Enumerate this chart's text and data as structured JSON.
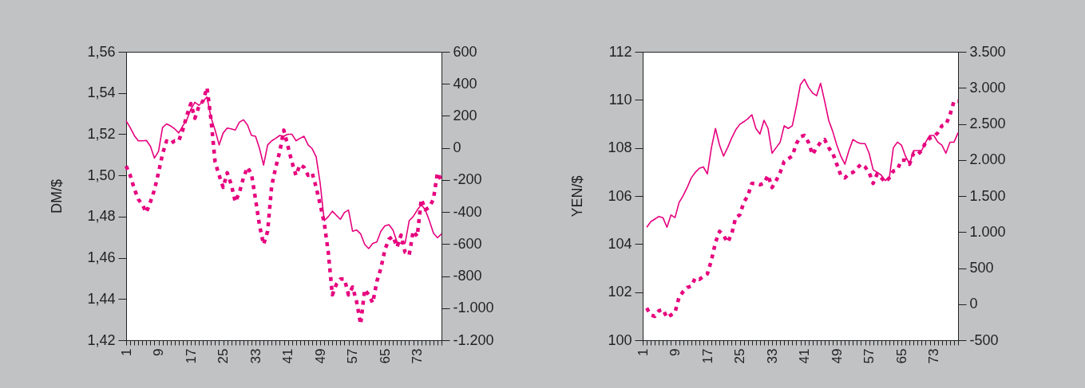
{
  "chart_data": [
    {
      "type": "line",
      "ylabel": "DM/$",
      "categories": [
        "1",
        null,
        null,
        null,
        null,
        null,
        null,
        null,
        "9",
        null,
        null,
        null,
        null,
        null,
        null,
        null,
        "17",
        null,
        null,
        null,
        null,
        null,
        null,
        null,
        "25",
        null,
        null,
        null,
        null,
        null,
        null,
        null,
        "33",
        null,
        null,
        null,
        null,
        null,
        null,
        null,
        "41",
        null,
        null,
        null,
        null,
        null,
        null,
        null,
        "49",
        null,
        null,
        null,
        null,
        null,
        null,
        null,
        "57",
        null,
        null,
        null,
        null,
        null,
        null,
        null,
        "65",
        null,
        null,
        null,
        null,
        null,
        null,
        null,
        "73",
        null,
        null,
        null,
        null,
        null,
        null
      ],
      "ylim": [
        1.42,
        1.56
      ],
      "yticks": [
        {
          "value": 1.42,
          "label": "1,42"
        },
        {
          "value": 1.44,
          "label": "1,44"
        },
        {
          "value": 1.46,
          "label": "1,46"
        },
        {
          "value": 1.48,
          "label": "1,48"
        },
        {
          "value": 1.5,
          "label": "1,50"
        },
        {
          "value": 1.52,
          "label": "1,52"
        },
        {
          "value": 1.54,
          "label": "1,54"
        },
        {
          "value": 1.56,
          "label": "1,56"
        }
      ],
      "y2lim": [
        -1200,
        600
      ],
      "y2ticks": [
        {
          "value": -1200,
          "label": "-1.200"
        },
        {
          "value": -1000,
          "label": "-1.000"
        },
        -800,
        -600,
        -400,
        -200,
        0,
        200,
        400,
        600
      ],
      "series": [
        {
          "color": "#e6007e",
          "line_style": "solid",
          "values": [
            1.5265,
            1.5232,
            1.5194,
            1.5168,
            1.5168,
            1.517,
            1.5142,
            1.5084,
            1.5116,
            1.5232,
            1.525,
            1.524,
            1.5226,
            1.5206,
            1.524,
            1.527,
            1.532,
            1.5355,
            1.534,
            1.536,
            1.538,
            1.528,
            1.522,
            1.5148,
            1.5206,
            1.523,
            1.5226,
            1.522,
            1.5258,
            1.527,
            1.5245,
            1.5194,
            1.519,
            1.513,
            1.505,
            1.5148,
            1.5168,
            1.518,
            1.5194,
            1.519,
            1.52,
            1.52,
            1.5168,
            1.518,
            1.519,
            1.5148,
            1.513,
            1.509,
            1.496,
            1.478,
            1.48,
            1.4826,
            1.4806,
            1.4787,
            1.482,
            1.4832,
            1.4729,
            1.4735,
            1.4716,
            1.4665,
            1.4645,
            1.467,
            1.4677,
            1.4729,
            1.4755,
            1.4761,
            1.4735,
            1.4677,
            1.467,
            1.467,
            1.478,
            1.48,
            1.4832,
            1.4858,
            1.4832,
            1.478,
            1.472,
            1.4697,
            1.4716
          ]
        },
        {
          "color": "#e6007e",
          "line_style": "dashed",
          "axis": "y2",
          "values": [
            -113,
            -171,
            -254,
            -320,
            -354,
            -403,
            -337,
            -262,
            -155,
            -38,
            44,
            28,
            44,
            44,
            111,
            202,
            277,
            185,
            260,
            293,
            376,
            177,
            -88,
            -171,
            -246,
            -155,
            -229,
            -337,
            -279,
            -188,
            -121,
            -163,
            -320,
            -486,
            -602,
            -519,
            -237,
            -121,
            -22,
            111,
            11,
            -88,
            -171,
            -105,
            -121,
            -171,
            -155,
            -246,
            -354,
            -469,
            -652,
            -917,
            -851,
            -818,
            -818,
            -917,
            -868,
            -959,
            -1100,
            -884,
            -917,
            -967,
            -834,
            -752,
            -635,
            -569,
            -552,
            -619,
            -544,
            -652,
            -669,
            -519,
            -552,
            -320,
            -386,
            -370,
            -320,
            -155,
            -204
          ]
        }
      ]
    },
    {
      "type": "line",
      "ylabel": "YEN/$",
      "categories": [
        "1",
        null,
        null,
        null,
        null,
        null,
        null,
        null,
        "9",
        null,
        null,
        null,
        null,
        null,
        null,
        null,
        "17",
        null,
        null,
        null,
        null,
        null,
        null,
        null,
        "25",
        null,
        null,
        null,
        null,
        null,
        null,
        null,
        "33",
        null,
        null,
        null,
        null,
        null,
        null,
        null,
        "41",
        null,
        null,
        null,
        null,
        null,
        null,
        null,
        "49",
        null,
        null,
        null,
        null,
        null,
        null,
        null,
        "57",
        null,
        null,
        null,
        null,
        null,
        null,
        null,
        "65",
        null,
        null,
        null,
        null,
        null,
        null,
        null,
        "73",
        null,
        null,
        null,
        null,
        null,
        null
      ],
      "ylim": [
        100,
        112
      ],
      "yticks": [
        100,
        102,
        104,
        106,
        108,
        110,
        112
      ],
      "y2lim": [
        -500,
        3500
      ],
      "y2ticks": [
        -500,
        0,
        500,
        {
          "value": 1000,
          "label": "1.000"
        },
        {
          "value": 1500,
          "label": "1.500"
        },
        {
          "value": 2000,
          "label": "2.000"
        },
        {
          "value": 2500,
          "label": "2.500"
        },
        {
          "value": 3000,
          "label": "3.000"
        },
        {
          "value": 3500,
          "label": "3.500"
        }
      ],
      "series": [
        {
          "color": "#e6007e",
          "line_style": "solid",
          "values": [
            null,
            104.7,
            104.93,
            105.04,
            105.15,
            105.1,
            104.7,
            105.21,
            105.1,
            105.73,
            106.01,
            106.35,
            106.75,
            106.98,
            107.15,
            107.21,
            106.92,
            108.01,
            108.81,
            108.12,
            107.66,
            108.01,
            108.41,
            108.75,
            108.98,
            109.09,
            109.21,
            109.38,
            108.81,
            108.58,
            109.15,
            108.81,
            107.78,
            108.01,
            108.24,
            108.92,
            108.81,
            108.92,
            109.72,
            110.63,
            110.86,
            110.52,
            110.29,
            110.17,
            110.69,
            109.95,
            109.15,
            108.69,
            108.12,
            107.66,
            107.32,
            107.89,
            108.35,
            108.24,
            108.18,
            108.18,
            107.78,
            107.09,
            106.98,
            106.87,
            106.64,
            106.75,
            108.01,
            108.24,
            108.12,
            107.66,
            107.32,
            107.89,
            107.89,
            107.89,
            108.24,
            108.52,
            108.52,
            108.24,
            108.12,
            107.78,
            108.24,
            108.24,
            108.63
          ]
        },
        {
          "color": "#e6007e",
          "line_style": "dashed",
          "axis": "y2",
          "values": [
            null,
            -55,
            -150,
            -169,
            -93,
            -74,
            -188,
            -150,
            -112,
            97,
            173,
            230,
            249,
            363,
            344,
            382,
            420,
            610,
            857,
            1009,
            952,
            857,
            971,
            1200,
            1238,
            1409,
            1504,
            1675,
            1675,
            1656,
            1675,
            1789,
            1618,
            1713,
            1827,
            1979,
            2017,
            2055,
            2226,
            2321,
            2340,
            2245,
            2074,
            2169,
            2245,
            2283,
            2169,
            2093,
            1941,
            1789,
            1751,
            1808,
            1827,
            1884,
            1941,
            1903,
            1827,
            1675,
            1808,
            1751,
            1694,
            1751,
            1846,
            1865,
            1998,
            1998,
            1941,
            2093,
            2074,
            2131,
            2245,
            2302,
            2321,
            2378,
            2473,
            2492,
            2625,
            2816,
            2816
          ]
        }
      ]
    }
  ]
}
